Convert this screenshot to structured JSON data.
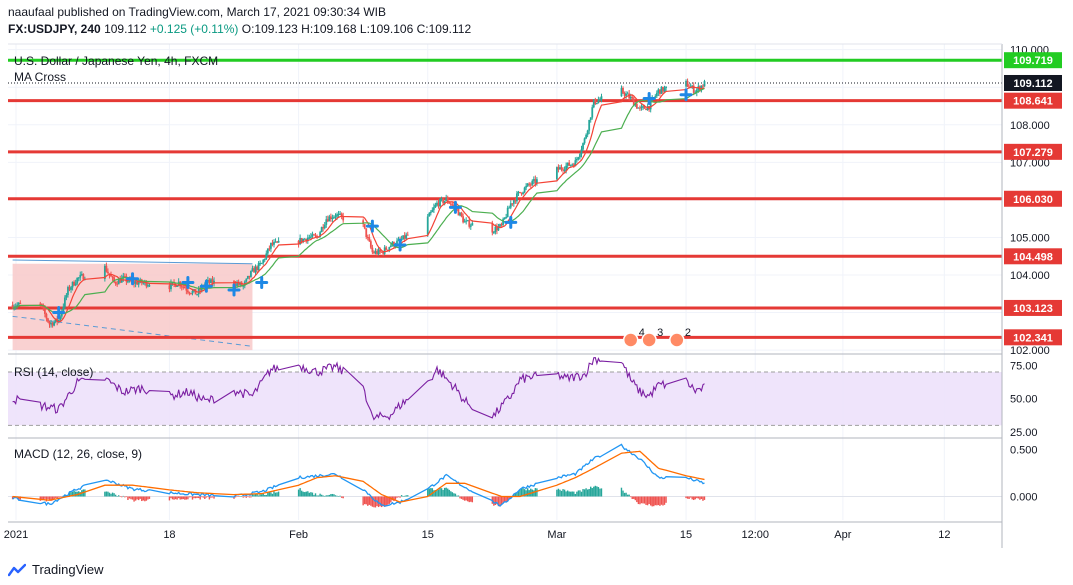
{
  "header": {
    "published": "naaufaal published on TradingView.com, March 17, 2021 09:30:34 WIB",
    "symbol": "FX:USDJPY, 240",
    "last": "109.112",
    "change": "+0.125 (+0.11%)",
    "open": "O:109.123",
    "high": "H:109.168",
    "low": "L:109.106",
    "close": "C:109.112"
  },
  "pane_titles": {
    "main": "U.S. Dollar / Japanese Yen, 4h, FXCM",
    "ma": "MA Cross",
    "rsi": "RSI (14, close)",
    "macd": "MACD (12, 26, close, 9)"
  },
  "footer": {
    "brand": "TradingView"
  },
  "colors": {
    "up": "#26a69a",
    "down": "#ef5350",
    "level_red": "#e53935",
    "level_green": "#22cc22",
    "ma_fast": "#f44336",
    "ma_slow": "#4caf50",
    "rsi": "#7b1fa2",
    "macd": "#2196f3",
    "signal": "#ff6d00",
    "box": "#f8c9c9",
    "cross": "#1e88e5"
  },
  "chart_data": [
    {
      "type": "candlestick",
      "title": "U.S. Dollar / Japanese Yen, 4h, FXCM",
      "x_ticks": [
        "2021",
        "18",
        "Feb",
        "15",
        "Mar",
        "15",
        "12:00",
        "Apr",
        "12"
      ],
      "y_ticks": [
        102.0,
        103.0,
        104.0,
        105.0,
        106.0,
        107.0,
        108.0,
        109.0,
        110.0
      ],
      "ylim": [
        101.95,
        110.15
      ],
      "tick_labels": [
        "102.000",
        "104.000",
        "105.000",
        "107.000",
        "108.000",
        "110.000"
      ],
      "grid": true,
      "price_path": [
        [
          "2021-01-04",
          103.2
        ],
        [
          "2021-01-05",
          102.7
        ],
        [
          "2021-01-06",
          102.8
        ],
        [
          "2021-01-07",
          103.6
        ],
        [
          "2021-01-08",
          103.9
        ],
        [
          "2021-01-11",
          104.2
        ],
        [
          "2021-01-12",
          103.8
        ],
        [
          "2021-01-13",
          103.9
        ],
        [
          "2021-01-14",
          103.8
        ],
        [
          "2021-01-15",
          103.8
        ],
        [
          "2021-01-18",
          103.7
        ],
        [
          "2021-01-19",
          103.8
        ],
        [
          "2021-01-20",
          103.6
        ],
        [
          "2021-01-21",
          103.5
        ],
        [
          "2021-01-22",
          103.8
        ],
        [
          "2021-01-25",
          103.8
        ],
        [
          "2021-01-26",
          103.7
        ],
        [
          "2021-01-27",
          104.1
        ],
        [
          "2021-01-28",
          104.3
        ],
        [
          "2021-01-29",
          104.8
        ],
        [
          "2021-02-01",
          104.9
        ],
        [
          "2021-02-02",
          105.0
        ],
        [
          "2021-02-03",
          105.0
        ],
        [
          "2021-02-04",
          105.5
        ],
        [
          "2021-02-05",
          105.6
        ],
        [
          "2021-02-08",
          105.3
        ],
        [
          "2021-02-09",
          104.6
        ],
        [
          "2021-02-10",
          104.6
        ],
        [
          "2021-02-11",
          104.8
        ],
        [
          "2021-02-12",
          104.9
        ],
        [
          "2021-02-15",
          105.5
        ],
        [
          "2021-02-16",
          105.9
        ],
        [
          "2021-02-17",
          106.0
        ],
        [
          "2021-02-18",
          105.8
        ],
        [
          "2021-02-19",
          105.4
        ],
        [
          "2021-02-22",
          105.2
        ],
        [
          "2021-02-23",
          105.3
        ],
        [
          "2021-02-24",
          105.9
        ],
        [
          "2021-02-25",
          106.2
        ],
        [
          "2021-02-26",
          106.4
        ],
        [
          "2021-03-01",
          106.8
        ],
        [
          "2021-03-02",
          106.9
        ],
        [
          "2021-03-03",
          107.0
        ],
        [
          "2021-03-04",
          107.6
        ],
        [
          "2021-03-05",
          108.6
        ],
        [
          "2021-03-08",
          108.9
        ],
        [
          "2021-03-09",
          108.7
        ],
        [
          "2021-03-10",
          108.4
        ],
        [
          "2021-03-11",
          108.5
        ],
        [
          "2021-03-12",
          108.9
        ],
        [
          "2021-03-15",
          109.1
        ],
        [
          "2021-03-16",
          108.9
        ],
        [
          "2021-03-17",
          109.1
        ]
      ],
      "levels": [
        {
          "value": 109.719,
          "label": "109.719",
          "color": "#22cc22"
        },
        {
          "value": 108.641,
          "label": "108.641",
          "color": "#e53935"
        },
        {
          "value": 107.279,
          "label": "107.279",
          "color": "#e53935"
        },
        {
          "value": 106.03,
          "label": "106.030",
          "color": "#e53935"
        },
        {
          "value": 104.498,
          "label": "104.498",
          "color": "#e53935"
        },
        {
          "value": 103.123,
          "label": "103.123",
          "color": "#e53935"
        },
        {
          "value": 102.341,
          "label": "102.341",
          "color": "#e53935"
        }
      ],
      "last_price": {
        "value": 109.112,
        "label": "109.112"
      },
      "box": {
        "from": "2021-01-01",
        "to": "2021-01-27",
        "low": 102.0,
        "high": 104.3
      },
      "trendline": {
        "from": [
          "2021-01-01",
          104.4
        ],
        "to": [
          "2021-01-27",
          104.3
        ]
      },
      "dashed_line": {
        "from": [
          "2021-01-01",
          102.9
        ],
        "to": [
          "2021-01-27",
          102.1
        ]
      },
      "crosses": [
        [
          "2021-01-06",
          103.0
        ],
        [
          "2021-01-14",
          103.9
        ],
        [
          "2021-01-20",
          103.8
        ],
        [
          "2021-01-22",
          103.7
        ],
        [
          "2021-01-25",
          103.6
        ],
        [
          "2021-01-28",
          103.8
        ],
        [
          "2021-02-09",
          105.3
        ],
        [
          "2021-02-12",
          104.8
        ],
        [
          "2021-02-18",
          105.8
        ],
        [
          "2021-02-24",
          105.4
        ],
        [
          "2021-03-11",
          108.7
        ],
        [
          "2021-03-15",
          108.8
        ]
      ],
      "event_marks": [
        "4",
        "3",
        "2"
      ]
    },
    {
      "type": "line",
      "title": "RSI (14, close)",
      "y_ticks": [
        25,
        50,
        75
      ],
      "tick_labels": [
        "25.00",
        "50.00",
        "75.00"
      ],
      "ylim": [
        22,
        82
      ],
      "band": [
        30,
        70
      ],
      "values": [
        [
          "2021-01-01",
          50
        ],
        [
          "2021-01-04",
          45
        ],
        [
          "2021-01-06",
          42
        ],
        [
          "2021-01-08",
          62
        ],
        [
          "2021-01-11",
          65
        ],
        [
          "2021-01-13",
          55
        ],
        [
          "2021-01-15",
          58
        ],
        [
          "2021-01-18",
          52
        ],
        [
          "2021-01-20",
          55
        ],
        [
          "2021-01-22",
          48
        ],
        [
          "2021-01-25",
          56
        ],
        [
          "2021-01-27",
          52
        ],
        [
          "2021-01-29",
          72
        ],
        [
          "2021-02-01",
          75
        ],
        [
          "2021-02-03",
          70
        ],
        [
          "2021-02-05",
          74
        ],
        [
          "2021-02-08",
          60
        ],
        [
          "2021-02-09",
          35
        ],
        [
          "2021-02-11",
          38
        ],
        [
          "2021-02-12",
          45
        ],
        [
          "2021-02-15",
          62
        ],
        [
          "2021-02-16",
          72
        ],
        [
          "2021-02-18",
          58
        ],
        [
          "2021-02-19",
          48
        ],
        [
          "2021-02-22",
          36
        ],
        [
          "2021-02-24",
          52
        ],
        [
          "2021-02-25",
          64
        ],
        [
          "2021-02-26",
          66
        ],
        [
          "2021-03-01",
          68
        ],
        [
          "2021-03-02",
          65
        ],
        [
          "2021-03-04",
          68
        ],
        [
          "2021-03-05",
          80
        ],
        [
          "2021-03-08",
          78
        ],
        [
          "2021-03-09",
          64
        ],
        [
          "2021-03-10",
          55
        ],
        [
          "2021-03-11",
          52
        ],
        [
          "2021-03-12",
          60
        ],
        [
          "2021-03-15",
          63
        ],
        [
          "2021-03-16",
          56
        ],
        [
          "2021-03-17",
          58
        ]
      ]
    },
    {
      "type": "line",
      "title": "MACD (12, 26, close, 9)",
      "y_ticks": [
        0.0,
        0.5
      ],
      "tick_labels": [
        "0.000",
        "0.500"
      ],
      "ylim": [
        -0.25,
        0.6
      ],
      "macd": [
        [
          "2021-01-01",
          -0.02
        ],
        [
          "2021-01-05",
          -0.08
        ],
        [
          "2021-01-08",
          0.08
        ],
        [
          "2021-01-11",
          0.18
        ],
        [
          "2021-01-14",
          0.08
        ],
        [
          "2021-01-18",
          0.04
        ],
        [
          "2021-01-21",
          0.02
        ],
        [
          "2021-01-25",
          0.0
        ],
        [
          "2021-01-28",
          0.05
        ],
        [
          "2021-02-01",
          0.2
        ],
        [
          "2021-02-03",
          0.22
        ],
        [
          "2021-02-05",
          0.24
        ],
        [
          "2021-02-08",
          0.08
        ],
        [
          "2021-02-10",
          -0.1
        ],
        [
          "2021-02-12",
          -0.06
        ],
        [
          "2021-02-15",
          0.08
        ],
        [
          "2021-02-17",
          0.22
        ],
        [
          "2021-02-19",
          0.1
        ],
        [
          "2021-02-23",
          -0.1
        ],
        [
          "2021-02-25",
          0.08
        ],
        [
          "2021-03-01",
          0.2
        ],
        [
          "2021-03-03",
          0.24
        ],
        [
          "2021-03-05",
          0.4
        ],
        [
          "2021-03-08",
          0.54
        ],
        [
          "2021-03-10",
          0.4
        ],
        [
          "2021-03-12",
          0.2
        ],
        [
          "2021-03-15",
          0.2
        ],
        [
          "2021-03-17",
          0.14
        ]
      ],
      "signal": [
        [
          "2021-01-01",
          0.0
        ],
        [
          "2021-01-05",
          -0.04
        ],
        [
          "2021-01-08",
          0.02
        ],
        [
          "2021-01-11",
          0.12
        ],
        [
          "2021-01-14",
          0.12
        ],
        [
          "2021-01-18",
          0.07
        ],
        [
          "2021-01-21",
          0.04
        ],
        [
          "2021-01-25",
          0.02
        ],
        [
          "2021-01-28",
          0.03
        ],
        [
          "2021-02-01",
          0.12
        ],
        [
          "2021-02-03",
          0.2
        ],
        [
          "2021-02-05",
          0.22
        ],
        [
          "2021-02-08",
          0.16
        ],
        [
          "2021-02-10",
          0.02
        ],
        [
          "2021-02-12",
          -0.06
        ],
        [
          "2021-02-15",
          0.0
        ],
        [
          "2021-02-17",
          0.14
        ],
        [
          "2021-02-19",
          0.14
        ],
        [
          "2021-02-23",
          0.0
        ],
        [
          "2021-02-25",
          0.0
        ],
        [
          "2021-03-01",
          0.12
        ],
        [
          "2021-03-03",
          0.2
        ],
        [
          "2021-03-05",
          0.3
        ],
        [
          "2021-03-08",
          0.46
        ],
        [
          "2021-03-10",
          0.48
        ],
        [
          "2021-03-12",
          0.3
        ],
        [
          "2021-03-15",
          0.22
        ],
        [
          "2021-03-17",
          0.18
        ]
      ]
    }
  ]
}
